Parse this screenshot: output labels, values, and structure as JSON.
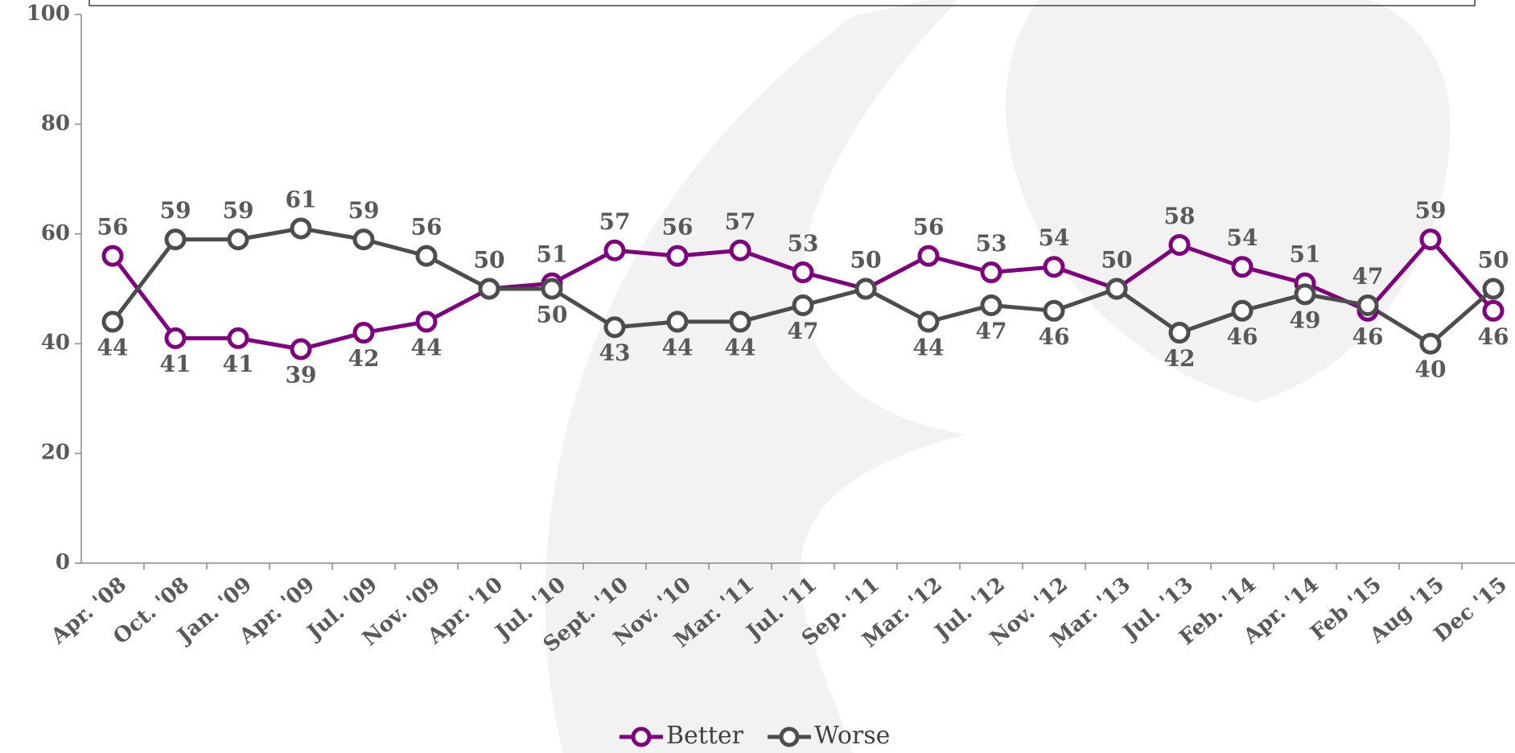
{
  "chart_data": {
    "type": "line",
    "categories": [
      "Apr. '08",
      "Oct. '08",
      "Jan. '09",
      "Apr. '09",
      "Jul. '09",
      "Nov. '09",
      "Apr. '10",
      "Jul. '10",
      "Sept. '10",
      "Nov. '10",
      "Mar. '11",
      "Jul. '11",
      "Sep. '11",
      "Mar. '12",
      "Jul. '12",
      "Nov. '12",
      "Mar. '13",
      "Jul. '13",
      "Feb. '14",
      "Apr. '14",
      "Feb '15",
      "Aug '15",
      "Dec '15"
    ],
    "series": [
      {
        "name": "Better",
        "color": "#800080",
        "values": [
          56,
          41,
          41,
          39,
          42,
          44,
          50,
          51,
          57,
          56,
          57,
          53,
          50,
          56,
          53,
          54,
          50,
          58,
          54,
          51,
          46,
          59,
          46
        ]
      },
      {
        "name": "Worse",
        "color": "#4d4d4d",
        "values": [
          44,
          59,
          59,
          61,
          59,
          56,
          50,
          50,
          43,
          44,
          44,
          47,
          50,
          44,
          47,
          46,
          50,
          42,
          46,
          49,
          47,
          40,
          50
        ]
      }
    ],
    "ylim": [
      0,
      100
    ],
    "yticks": [
      0,
      20,
      40,
      60,
      80,
      100
    ],
    "legend": "bottom"
  }
}
